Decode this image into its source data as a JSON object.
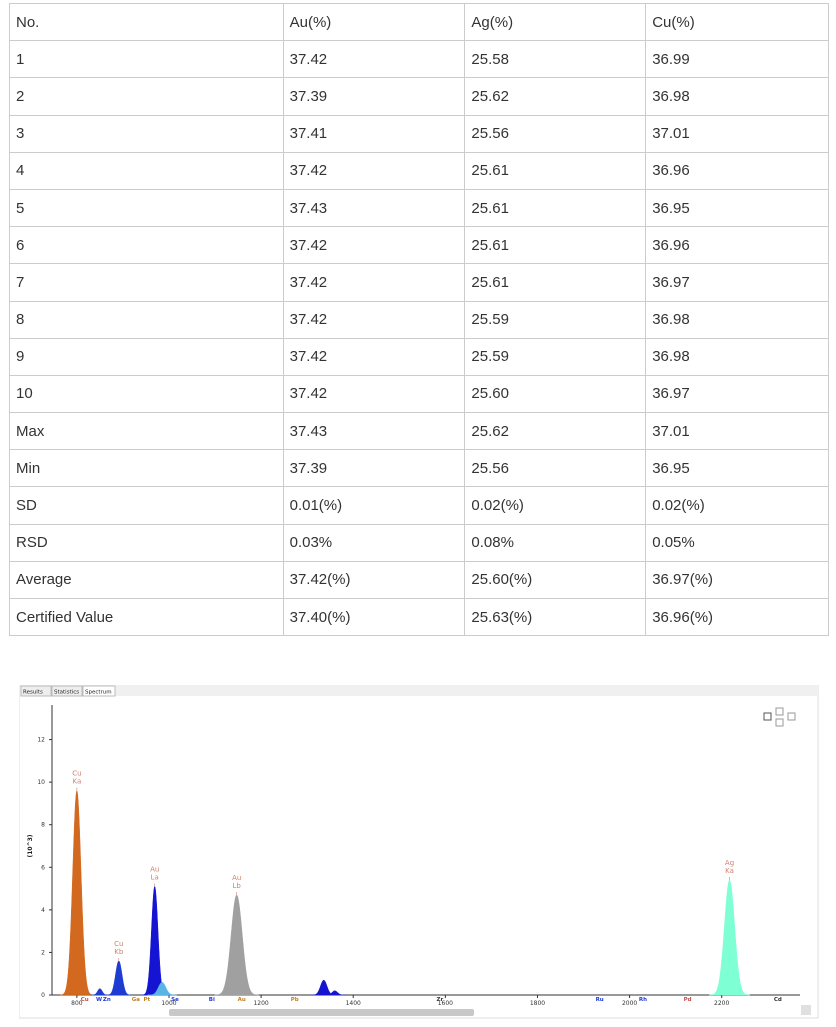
{
  "table": {
    "header": [
      "No.",
      "Au(%)",
      "Ag(%)",
      "Cu(%)"
    ],
    "rows": [
      [
        "1",
        "37.42",
        "25.58",
        "36.99"
      ],
      [
        "2",
        "37.39",
        "25.62",
        "36.98"
      ],
      [
        "3",
        "37.41",
        "25.56",
        "37.01"
      ],
      [
        "4",
        "37.42",
        "25.61",
        "36.96"
      ],
      [
        "5",
        "37.43",
        "25.61",
        "36.95"
      ],
      [
        "6",
        "37.42",
        "25.61",
        "36.96"
      ],
      [
        "7",
        "37.42",
        "25.61",
        "36.97"
      ],
      [
        "8",
        "37.42",
        "25.59",
        "36.98"
      ],
      [
        "9",
        "37.42",
        "25.59",
        "36.98"
      ],
      [
        "10",
        "37.42",
        "25.60",
        "36.97"
      ],
      [
        "Max",
        "37.43",
        "25.62",
        "37.01"
      ],
      [
        "Min",
        "37.39",
        "25.56",
        "36.95"
      ],
      [
        "SD",
        "0.01(%)",
        "0.02(%)",
        "0.02(%)"
      ],
      [
        "RSD",
        "0.03%",
        "0.08%",
        "0.05%"
      ],
      [
        "Average",
        "37.42(%)",
        "25.60(%)",
        "36.97(%)"
      ],
      [
        "Certified Value",
        "37.40(%)",
        "25.63(%)",
        "36.96(%)"
      ]
    ]
  },
  "spectrum": {
    "tabs": [
      "Results",
      "Statistics",
      "Spectrum"
    ],
    "y_unit": "(10^3)",
    "xlim": [
      746,
      2370
    ],
    "ylim": [
      0,
      14
    ],
    "xticks": [
      800,
      1000,
      1200,
      1400,
      1600,
      1800,
      2000,
      2200
    ],
    "yticks": [
      0,
      2,
      4,
      6,
      8,
      10,
      12
    ],
    "peaks": [
      {
        "label": [
          "Cu",
          "Ka"
        ],
        "x": 800,
        "height": 9.6,
        "color": "#d2691e",
        "width": 9
      },
      {
        "x": 850,
        "height": 0.3,
        "color": "#1e3cd2",
        "width": 5
      },
      {
        "label": [
          "Cu",
          "Kb"
        ],
        "x": 891,
        "height": 1.6,
        "color": "#1e3cd2",
        "width": 7
      },
      {
        "label": [
          "Au",
          "La"
        ],
        "x": 969,
        "height": 5.1,
        "color": "#1414d2",
        "width": 7
      },
      {
        "x": 985,
        "height": 0.6,
        "color": "#5ab4e6",
        "width": 8
      },
      {
        "label": [
          "Au",
          "Lb"
        ],
        "x": 1147,
        "height": 4.7,
        "color": "#a0a0a0",
        "width": 12
      },
      {
        "x": 1336,
        "height": 0.7,
        "color": "#1414d2",
        "width": 7
      },
      {
        "x": 1360,
        "height": 0.2,
        "color": "#1414d2",
        "width": 6
      },
      {
        "label": [
          "Ag",
          "Ka"
        ],
        "x": 2217,
        "height": 5.4,
        "color": "#7fffd4",
        "width": 11
      }
    ],
    "element_markers": [
      {
        "label": "Cu",
        "x": 817,
        "color": "#c0504d"
      },
      {
        "label": "W",
        "x": 848,
        "color": "#1e3cd2"
      },
      {
        "label": "Zn",
        "x": 865,
        "color": "#1e3cd2"
      },
      {
        "label": "Ga",
        "x": 928,
        "color": "#c08020"
      },
      {
        "label": "Pt",
        "x": 952,
        "color": "#c08020"
      },
      {
        "label": "Se",
        "x": 1013,
        "color": "#1e3cd2"
      },
      {
        "label": "Bi",
        "x": 1093,
        "color": "#1e3cd2"
      },
      {
        "label": "Au",
        "x": 1158,
        "color": "#c08020"
      },
      {
        "label": "Pb",
        "x": 1273,
        "color": "#c08020"
      },
      {
        "label": "Zr",
        "x": 1588,
        "color": "#333333"
      },
      {
        "label": "Ru",
        "x": 1935,
        "color": "#1e3cd2"
      },
      {
        "label": "Rh",
        "x": 2029,
        "color": "#1e3cd2"
      },
      {
        "label": "Pd",
        "x": 2126,
        "color": "#c0504d"
      },
      {
        "label": "Cd",
        "x": 2322,
        "color": "#333333"
      }
    ]
  }
}
